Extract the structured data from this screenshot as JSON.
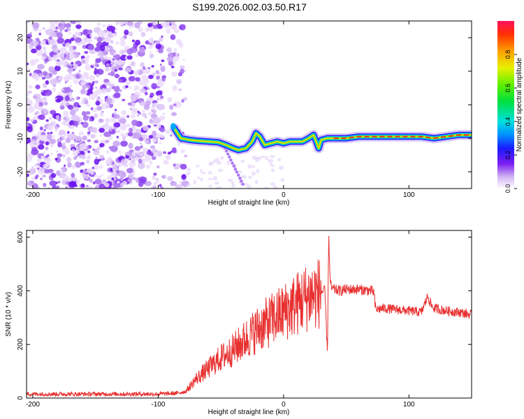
{
  "title": "S199.2026.002.03.50.R17",
  "chart_data": [
    {
      "type": "heatmap",
      "panel": "spectrogram",
      "xlabel": "Height of straight line (km)",
      "ylabel": "Frequency (Hz)",
      "xlim": [
        -205,
        150
      ],
      "ylim": [
        -25,
        25
      ],
      "xticks": [
        -200,
        -100,
        0,
        100
      ],
      "yticks": [
        -20,
        -10,
        0,
        10,
        20
      ],
      "colorbar": {
        "label": "Normalized spectral amplitude",
        "range": [
          0,
          1
        ],
        "ticks": [
          0.0,
          0.2,
          0.4,
          0.6,
          0.8
        ]
      },
      "noise_region_x": [
        -205,
        -78
      ],
      "signal_trace": {
        "x": [
          -88,
          -82,
          -75,
          -68,
          -60,
          -52,
          -46,
          -40,
          -36,
          -30,
          -25,
          -22,
          -19,
          -15,
          -10,
          -5,
          0,
          5,
          10,
          15,
          20,
          24,
          27,
          28,
          30,
          35,
          40,
          50,
          60,
          70,
          80,
          90,
          100,
          110,
          120,
          130,
          140,
          150
        ],
        "freq": [
          -6.5,
          -10,
          -10.5,
          -10.8,
          -11,
          -11.2,
          -12,
          -13,
          -13.5,
          -13,
          -11,
          -8.5,
          -9.5,
          -12,
          -11.5,
          -11,
          -11.5,
          -11,
          -11,
          -11,
          -10,
          -9,
          -12,
          -13,
          -10.5,
          -10,
          -10,
          -10,
          -9.5,
          -9.5,
          -9.5,
          -9.5,
          -9.5,
          -9.5,
          -10,
          -9.5,
          -9,
          -9
        ]
      }
    },
    {
      "type": "line",
      "panel": "snr",
      "xlabel": "Height of straight line (km)",
      "ylabel": "SNR (10 * v/v)",
      "xlim": [
        -205,
        150
      ],
      "ylim": [
        0,
        625
      ],
      "xticks": [
        -200,
        -100,
        0,
        100
      ],
      "yticks": [
        0,
        200,
        400,
        600
      ],
      "series": [
        {
          "name": "SNR",
          "color": "#e83030",
          "x": [
            -205,
            -180,
            -150,
            -120,
            -100,
            -85,
            -78,
            -70,
            -60,
            -50,
            -40,
            -30,
            -20,
            -10,
            0,
            10,
            20,
            30,
            33,
            35,
            36,
            37,
            38,
            40,
            45,
            50,
            60,
            70,
            72,
            73,
            74,
            80,
            90,
            100,
            110,
            115,
            118,
            120,
            125,
            130,
            140,
            150
          ],
          "y": [
            15,
            15,
            15,
            15,
            15,
            18,
            25,
            70,
            110,
            150,
            180,
            220,
            260,
            290,
            320,
            350,
            380,
            395,
            400,
            160,
            620,
            450,
            410,
            405,
            400,
            405,
            405,
            400,
            395,
            345,
            330,
            335,
            330,
            325,
            320,
            380,
            345,
            335,
            330,
            325,
            320,
            310
          ]
        }
      ]
    }
  ]
}
